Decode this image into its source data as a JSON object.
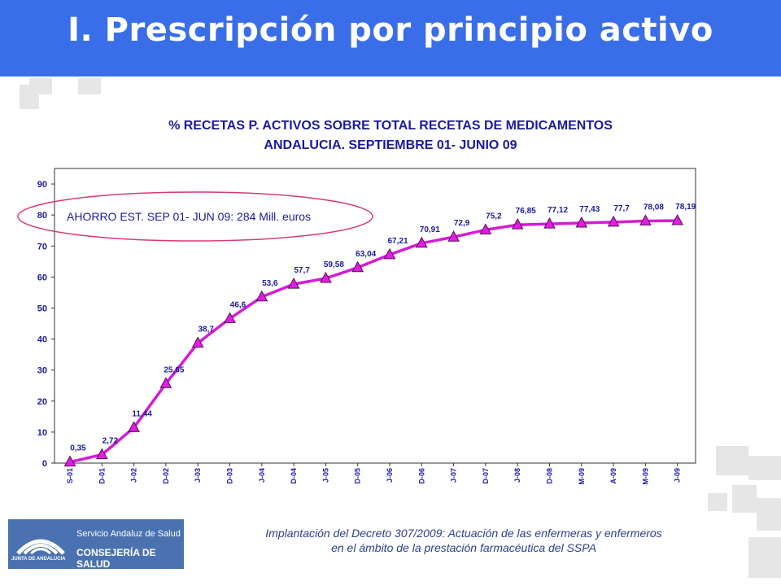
{
  "header": {
    "title": "I. Prescripción por principio activo"
  },
  "chart_data": {
    "type": "line",
    "title": "% RECETAS P. ACTIVOS SOBRE TOTAL RECETAS DE MEDICAMENTOS",
    "subtitle": "ANDALUCIA. SEPTIEMBRE 01- JUNIO 09",
    "annotation": "AHORRO EST. SEP 01- JUN 09: 284 Mill. euros",
    "categories": [
      "S-01",
      "D-01",
      "J-02",
      "D-02",
      "J-03",
      "D-03",
      "J-04",
      "D-04",
      "J-05",
      "D-05",
      "J-06",
      "D-06",
      "J-07",
      "D-07",
      "J-08",
      "D-08",
      "M-09",
      "A-09",
      "M-09",
      "J-09"
    ],
    "values": [
      0.35,
      2.72,
      11.44,
      25.65,
      38.7,
      46.6,
      53.6,
      57.7,
      59.58,
      63.04,
      67.21,
      70.91,
      72.9,
      75.2,
      76.85,
      77.12,
      77.43,
      77.7,
      78.08,
      78.19
    ],
    "data_labels": [
      "0,35",
      "2,72",
      "11,44",
      "25,65",
      "38,7",
      "46,6",
      "53,6",
      "57,7",
      "59,58",
      "63,04",
      "67,21",
      "70,91",
      "72,9",
      "75,2",
      "76,85",
      "77,12",
      "77,43",
      "77,7",
      "78,08",
      "78,19"
    ],
    "yticks": [
      "0",
      "10",
      "20",
      "30",
      "40",
      "50",
      "60",
      "70",
      "80",
      "90"
    ],
    "ylim": [
      0,
      95
    ],
    "grid": false,
    "legend": "none",
    "colors": {
      "line": "#d41cd4",
      "marker": "#e01ee0",
      "marker_edge": "#5a0a5a",
      "annotation_ellipse": "#d83a6a",
      "axis_text": "#1a1aa0"
    }
  },
  "footer": {
    "logo": {
      "region_label": "JUNTA DE ANDALUCIA",
      "service_label": "Servicio Andaluz de Salud",
      "department_label": "CONSEJERÍA DE SALUD"
    },
    "caption_line1": "Implantación del Decreto 307/2009: Actuación de las enfermeras y enfermeros",
    "caption_line2": "en el ámbito de la prestación farmacéutica del SSPA"
  }
}
